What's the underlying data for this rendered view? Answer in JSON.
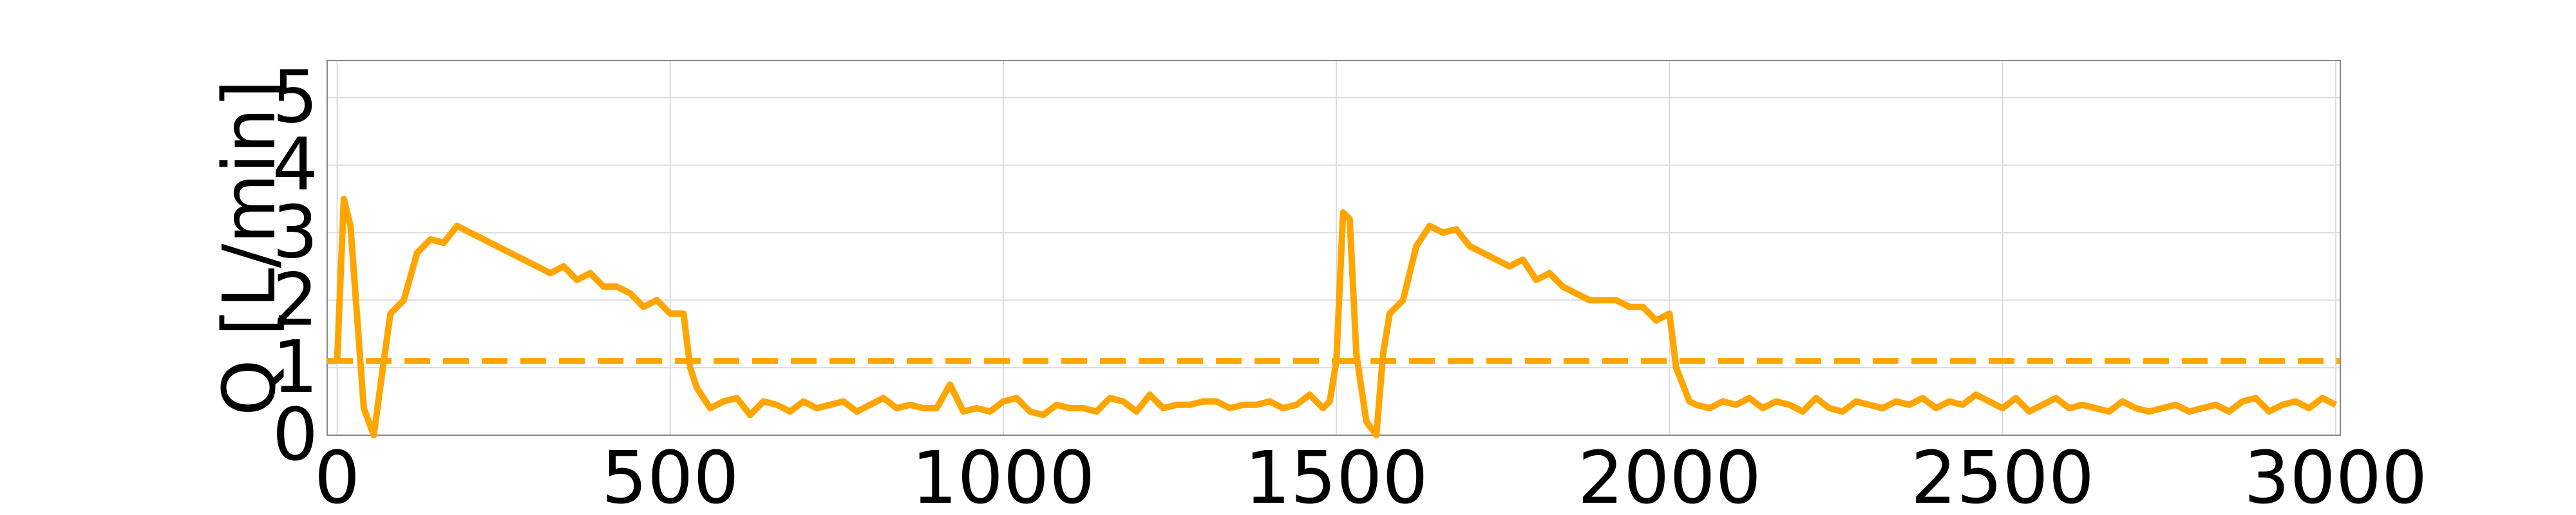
{
  "chart_data": {
    "type": "line",
    "ylabel": "Q [L/min]",
    "xlim": [
      -15,
      3007
    ],
    "ylim": [
      0,
      5.55
    ],
    "xticks": [
      0,
      500,
      1000,
      1500,
      2000,
      2500,
      3000
    ],
    "yticks": [
      0,
      1,
      2,
      3,
      4,
      5
    ],
    "grid": true,
    "hline": {
      "value": 1.1,
      "color": "#ffa500",
      "dashed": true
    },
    "series": [
      {
        "color": "#ffa500",
        "x": [
          0,
          10,
          20,
          40,
          55,
          70,
          80,
          100,
          120,
          140,
          160,
          180,
          200,
          220,
          240,
          260,
          280,
          300,
          320,
          340,
          360,
          380,
          400,
          420,
          440,
          460,
          480,
          500,
          520,
          530,
          540,
          560,
          580,
          600,
          620,
          640,
          660,
          680,
          700,
          720,
          740,
          760,
          780,
          800,
          820,
          840,
          860,
          880,
          900,
          920,
          940,
          960,
          980,
          1000,
          1020,
          1040,
          1060,
          1080,
          1100,
          1120,
          1140,
          1160,
          1180,
          1200,
          1220,
          1240,
          1260,
          1280,
          1300,
          1320,
          1340,
          1360,
          1380,
          1400,
          1420,
          1440,
          1460,
          1480,
          1490,
          1500,
          1510,
          1520,
          1530,
          1545,
          1560,
          1570,
          1580,
          1600,
          1620,
          1640,
          1660,
          1680,
          1700,
          1720,
          1740,
          1760,
          1780,
          1800,
          1820,
          1840,
          1860,
          1880,
          1900,
          1920,
          1940,
          1960,
          1980,
          2000,
          2010,
          2030,
          2040,
          2060,
          2080,
          2100,
          2120,
          2140,
          2160,
          2180,
          2200,
          2220,
          2240,
          2260,
          2280,
          2300,
          2320,
          2340,
          2360,
          2380,
          2400,
          2420,
          2440,
          2460,
          2480,
          2500,
          2520,
          2540,
          2560,
          2580,
          2600,
          2620,
          2640,
          2660,
          2680,
          2700,
          2720,
          2740,
          2760,
          2780,
          2800,
          2820,
          2840,
          2860,
          2880,
          2900,
          2920,
          2940,
          2960,
          2980,
          3000
        ],
        "values": [
          1.1,
          3.5,
          3.1,
          0.4,
          0.0,
          1.1,
          1.8,
          2.0,
          2.7,
          2.9,
          2.85,
          3.1,
          3.0,
          2.9,
          2.8,
          2.7,
          2.6,
          2.5,
          2.4,
          2.5,
          2.3,
          2.4,
          2.2,
          2.2,
          2.1,
          1.9,
          2.0,
          1.8,
          1.8,
          1.0,
          0.7,
          0.4,
          0.5,
          0.55,
          0.3,
          0.5,
          0.45,
          0.35,
          0.5,
          0.4,
          0.45,
          0.5,
          0.35,
          0.45,
          0.55,
          0.4,
          0.45,
          0.4,
          0.4,
          0.75,
          0.35,
          0.4,
          0.35,
          0.5,
          0.55,
          0.35,
          0.3,
          0.45,
          0.4,
          0.4,
          0.35,
          0.55,
          0.5,
          0.35,
          0.6,
          0.4,
          0.45,
          0.45,
          0.5,
          0.5,
          0.4,
          0.45,
          0.45,
          0.5,
          0.4,
          0.45,
          0.6,
          0.4,
          0.5,
          1.1,
          3.3,
          3.2,
          1.2,
          0.2,
          0.0,
          1.2,
          1.8,
          2.0,
          2.8,
          3.1,
          3.0,
          3.05,
          2.8,
          2.7,
          2.6,
          2.5,
          2.6,
          2.3,
          2.4,
          2.2,
          2.1,
          2.0,
          2.0,
          2.0,
          1.9,
          1.9,
          1.7,
          1.8,
          1.0,
          0.5,
          0.45,
          0.4,
          0.5,
          0.45,
          0.55,
          0.4,
          0.5,
          0.45,
          0.35,
          0.55,
          0.4,
          0.35,
          0.5,
          0.45,
          0.4,
          0.5,
          0.45,
          0.55,
          0.4,
          0.5,
          0.45,
          0.6,
          0.5,
          0.4,
          0.55,
          0.35,
          0.45,
          0.55,
          0.4,
          0.45,
          0.4,
          0.35,
          0.5,
          0.4,
          0.35,
          0.4,
          0.45,
          0.35,
          0.4,
          0.45,
          0.35,
          0.5,
          0.55,
          0.35,
          0.45,
          0.5,
          0.4,
          0.55,
          0.45
        ]
      }
    ]
  }
}
